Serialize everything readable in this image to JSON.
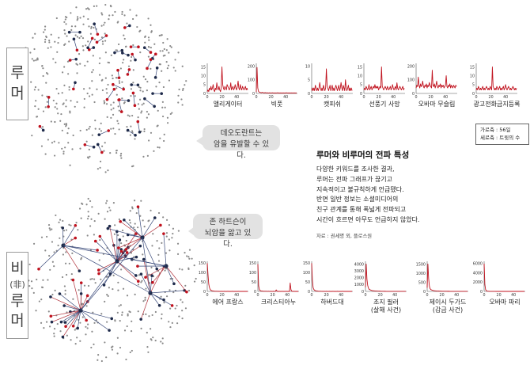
{
  "rumor_label": [
    "루",
    "머"
  ],
  "nonrumor_label": [
    "비",
    "(非)",
    "루",
    "머"
  ],
  "bubble_top": [
    "데오도란트는",
    "암을 유발할 수 있다."
  ],
  "bubble_bottom": [
    "존 하트슨이",
    "뇌암을 앓고 있다."
  ],
  "legend": {
    "x_axis": "가로축 : 56일",
    "y_axis": "세로축 : 트윗의 수"
  },
  "info": {
    "title": "루머와 비루머의 전파 특성",
    "lines": [
      "다양한 키워드를 조사한 결과,",
      "루머는 전파 그래프가 끊기고",
      "지속적이고 불규칙하게 언급됐다.",
      "반면 일반 정보는 소셜미디어의",
      "친구 관계를 통해 폭넓게 전파되고",
      "시간이 흐르면 아무도 언급하지 않았다."
    ],
    "source": "자료 : 권세명 외, 플로스원"
  },
  "colors": {
    "series": "#c0121e",
    "node_red": "#c0121e",
    "node_dark": "#1e2a4a",
    "node_gray": "#8a8a8a"
  },
  "chart_data": [
    {
      "type": "line",
      "title": "앨리게이터",
      "x_ticks": [
        0,
        20,
        40
      ],
      "y_ticks": [
        0,
        5,
        10,
        15
      ],
      "ylim": [
        0,
        17
      ],
      "xlim": [
        0,
        56
      ],
      "series": [
        {
          "values": [
            1,
            2,
            1,
            3,
            2,
            4,
            2,
            3,
            5,
            2,
            1,
            3,
            2,
            6,
            3,
            2,
            4,
            2,
            1,
            3,
            15,
            5,
            3,
            2,
            4,
            3,
            2,
            5,
            4,
            3,
            2,
            3,
            6,
            2,
            3,
            4,
            2,
            3,
            5,
            3,
            2,
            4,
            7,
            3,
            2,
            5,
            3,
            2,
            4,
            3,
            2,
            3,
            4,
            2,
            3,
            2
          ]
        }
      ]
    },
    {
      "type": "line",
      "title": "빅풋",
      "x_ticks": [
        0,
        20,
        40
      ],
      "y_ticks": [
        0,
        100,
        200
      ],
      "ylim": [
        0,
        220
      ],
      "xlim": [
        0,
        56
      ],
      "series": [
        {
          "values": [
            10,
            190,
            40,
            15,
            10,
            8,
            6,
            5,
            8,
            6,
            5,
            4,
            6,
            5,
            4,
            5,
            4,
            3,
            5,
            4,
            3,
            4,
            5,
            3,
            4,
            3,
            4,
            3,
            4,
            5,
            3,
            4,
            3,
            4,
            3,
            4,
            3,
            4,
            3,
            4,
            3,
            5,
            4,
            3,
            4,
            3,
            4,
            3,
            4,
            3,
            4,
            3,
            4,
            3,
            4,
            3
          ]
        }
      ]
    },
    {
      "type": "line",
      "title": "캣피쉬",
      "x_ticks": [
        0,
        20,
        40
      ],
      "y_ticks": [
        0,
        5,
        10
      ],
      "ylim": [
        0,
        11
      ],
      "xlim": [
        0,
        56
      ],
      "series": [
        {
          "values": [
            1,
            2,
            1,
            2,
            1,
            3,
            2,
            1,
            2,
            1,
            2,
            4,
            2,
            1,
            2,
            1,
            3,
            2,
            1,
            2,
            9,
            3,
            2,
            1,
            2,
            3,
            1,
            2,
            3,
            1,
            2,
            1,
            2,
            3,
            2,
            1,
            2,
            3,
            1,
            2,
            4,
            2,
            1,
            3,
            2,
            1,
            5,
            2,
            1,
            2,
            3,
            1,
            2,
            1,
            2,
            1
          ]
        }
      ]
    },
    {
      "type": "line",
      "title": "선풍기 사망",
      "x_ticks": [
        0,
        20,
        40
      ],
      "y_ticks": [
        0,
        5,
        10,
        15
      ],
      "ylim": [
        0,
        17
      ],
      "xlim": [
        0,
        56
      ],
      "series": [
        {
          "values": [
            2,
            3,
            2,
            4,
            3,
            2,
            3,
            5,
            2,
            3,
            4,
            2,
            3,
            4,
            3,
            5,
            3,
            4,
            3,
            4,
            2,
            3,
            4,
            3,
            15,
            4,
            3,
            2,
            3,
            4,
            3,
            2,
            4,
            3,
            2,
            3,
            4,
            2,
            3,
            5,
            3,
            2,
            3,
            4,
            2,
            6,
            3,
            2,
            3,
            4,
            3,
            2,
            3,
            4,
            2,
            3
          ]
        }
      ]
    },
    {
      "type": "line",
      "title": "오바마 무슬림",
      "x_ticks": [
        0,
        20,
        40
      ],
      "y_ticks": [
        0,
        100,
        200
      ],
      "ylim": [
        0,
        220
      ],
      "xlim": [
        0,
        56
      ],
      "series": [
        {
          "values": [
            40,
            60,
            50,
            120,
            60,
            40,
            70,
            50,
            60,
            90,
            50,
            40,
            60,
            50,
            70,
            40,
            60,
            50,
            80,
            60,
            50,
            40,
            170,
            60,
            50,
            70,
            40,
            60,
            90,
            50,
            40,
            60,
            50,
            70,
            40,
            60,
            50,
            60,
            40,
            50,
            60,
            130,
            50,
            40,
            60,
            50,
            70,
            40,
            60,
            50,
            40,
            60,
            50,
            40,
            60,
            50
          ]
        }
      ]
    },
    {
      "type": "line",
      "title": "광고전화금지등록",
      "x_ticks": [
        0,
        20,
        40
      ],
      "y_ticks": [
        0,
        5,
        10,
        15
      ],
      "ylim": [
        0,
        17
      ],
      "xlim": [
        0,
        56
      ],
      "series": [
        {
          "values": [
            2,
            3,
            2,
            4,
            3,
            2,
            3,
            2,
            3,
            4,
            2,
            3,
            2,
            3,
            4,
            3,
            2,
            3,
            2,
            4,
            3,
            2,
            15,
            4,
            3,
            2,
            3,
            2,
            4,
            3,
            2,
            3,
            4,
            2,
            3,
            2,
            3,
            4,
            2,
            3,
            5,
            3,
            2,
            3,
            4,
            3,
            2,
            3,
            2,
            3,
            4,
            3,
            2,
            3,
            2,
            3
          ]
        }
      ]
    },
    {
      "type": "line",
      "title": "에어 프랑스",
      "x_ticks": [
        0,
        20,
        40
      ],
      "y_ticks": [
        0,
        50,
        100,
        150
      ],
      "ylim": [
        0,
        160
      ],
      "xlim": [
        0,
        56
      ],
      "series": [
        {
          "values": [
            150,
            90,
            40,
            20,
            10,
            6,
            4,
            3,
            2,
            2,
            1,
            1,
            1,
            1,
            1,
            0,
            1,
            0,
            0,
            1,
            0,
            0,
            0,
            1,
            0,
            0,
            0,
            0,
            1,
            0,
            0,
            0,
            0,
            0,
            1,
            0,
            0,
            0,
            0,
            0,
            0,
            0,
            0,
            1,
            0,
            0,
            0,
            0,
            0,
            0,
            0,
            0,
            0,
            0,
            0,
            0
          ]
        }
      ]
    },
    {
      "type": "line",
      "title": "크리스티아누",
      "x_ticks": [
        0,
        20,
        40
      ],
      "y_ticks": [
        0,
        50,
        100,
        150
      ],
      "ylim": [
        0,
        160
      ],
      "xlim": [
        0,
        56
      ],
      "series": [
        {
          "values": [
            145,
            30,
            10,
            5,
            3,
            2,
            2,
            1,
            1,
            1,
            1,
            1,
            1,
            0,
            1,
            1,
            0,
            0,
            1,
            0,
            0,
            1,
            0,
            0,
            1,
            8,
            2,
            0,
            0,
            1,
            0,
            0,
            0,
            1,
            0,
            0,
            0,
            0,
            1,
            0,
            0,
            0,
            0,
            0,
            45,
            10,
            2,
            0,
            0,
            1,
            0,
            0,
            0,
            0,
            0,
            0
          ]
        }
      ]
    },
    {
      "type": "line",
      "title": "하버드대",
      "x_ticks": [
        0,
        20,
        40
      ],
      "y_ticks": [
        0,
        50,
        100,
        150
      ],
      "ylim": [
        0,
        160
      ],
      "xlim": [
        0,
        56
      ],
      "series": [
        {
          "values": [
            150,
            60,
            20,
            10,
            6,
            4,
            3,
            2,
            2,
            1,
            1,
            1,
            1,
            1,
            0,
            1,
            0,
            1,
            0,
            0,
            1,
            0,
            0,
            0,
            1,
            0,
            0,
            0,
            0,
            1,
            0,
            0,
            0,
            0,
            0,
            1,
            0,
            0,
            0,
            0,
            0,
            0,
            1,
            0,
            0,
            0,
            0,
            0,
            0,
            0,
            0,
            0,
            0,
            0,
            0,
            0
          ]
        }
      ]
    },
    {
      "type": "line",
      "title": "조지 필러\n(살해 사건)",
      "x_ticks": [
        0,
        20,
        40
      ],
      "y_ticks": [
        0,
        1000,
        2000,
        3000,
        4000
      ],
      "ylim": [
        0,
        4400
      ],
      "xlim": [
        0,
        56
      ],
      "series": [
        {
          "values": [
            600,
            4000,
            1800,
            900,
            500,
            300,
            250,
            200,
            150,
            120,
            100,
            90,
            80,
            70,
            60,
            50,
            45,
            40,
            35,
            30,
            28,
            25,
            22,
            20,
            18,
            16,
            15,
            14,
            13,
            12,
            11,
            10,
            10,
            9,
            9,
            8,
            8,
            7,
            7,
            6,
            6,
            6,
            5,
            5,
            5,
            5,
            4,
            4,
            4,
            4,
            3,
            3,
            3,
            3,
            3,
            3
          ]
        }
      ]
    },
    {
      "type": "line",
      "title": "제이시 두가드\n(감금 사건)",
      "x_ticks": [
        0,
        20,
        40
      ],
      "y_ticks": [
        0,
        500,
        1000,
        1500
      ],
      "ylim": [
        0,
        1650
      ],
      "xlim": [
        0,
        56
      ],
      "series": [
        {
          "values": [
            200,
            1500,
            700,
            300,
            150,
            100,
            80,
            60,
            50,
            40,
            35,
            30,
            25,
            22,
            20,
            18,
            16,
            14,
            12,
            11,
            10,
            9,
            8,
            8,
            7,
            7,
            6,
            6,
            5,
            5,
            5,
            4,
            4,
            4,
            4,
            3,
            3,
            3,
            3,
            3,
            2,
            2,
            2,
            2,
            2,
            2,
            2,
            2,
            2,
            2,
            1,
            1,
            1,
            1,
            1,
            1
          ]
        }
      ]
    },
    {
      "type": "line",
      "title": "오바마 파리",
      "x_ticks": [
        0,
        20,
        40
      ],
      "y_ticks": [
        0,
        2000,
        4000,
        6000
      ],
      "ylim": [
        0,
        6500
      ],
      "xlim": [
        0,
        56
      ],
      "series": [
        {
          "values": [
            6000,
            1500,
            400,
            150,
            80,
            50,
            30,
            20,
            15,
            10,
            8,
            6,
            5,
            4,
            3,
            3,
            2,
            2,
            2,
            1,
            1,
            1,
            1,
            1,
            1,
            1,
            1,
            1,
            1,
            1,
            1,
            1,
            1,
            1,
            1,
            1,
            1,
            1,
            1,
            1,
            1,
            1,
            1,
            1,
            1,
            1,
            1,
            1,
            1,
            1,
            1,
            1,
            1,
            1,
            1,
            1
          ]
        }
      ]
    }
  ]
}
